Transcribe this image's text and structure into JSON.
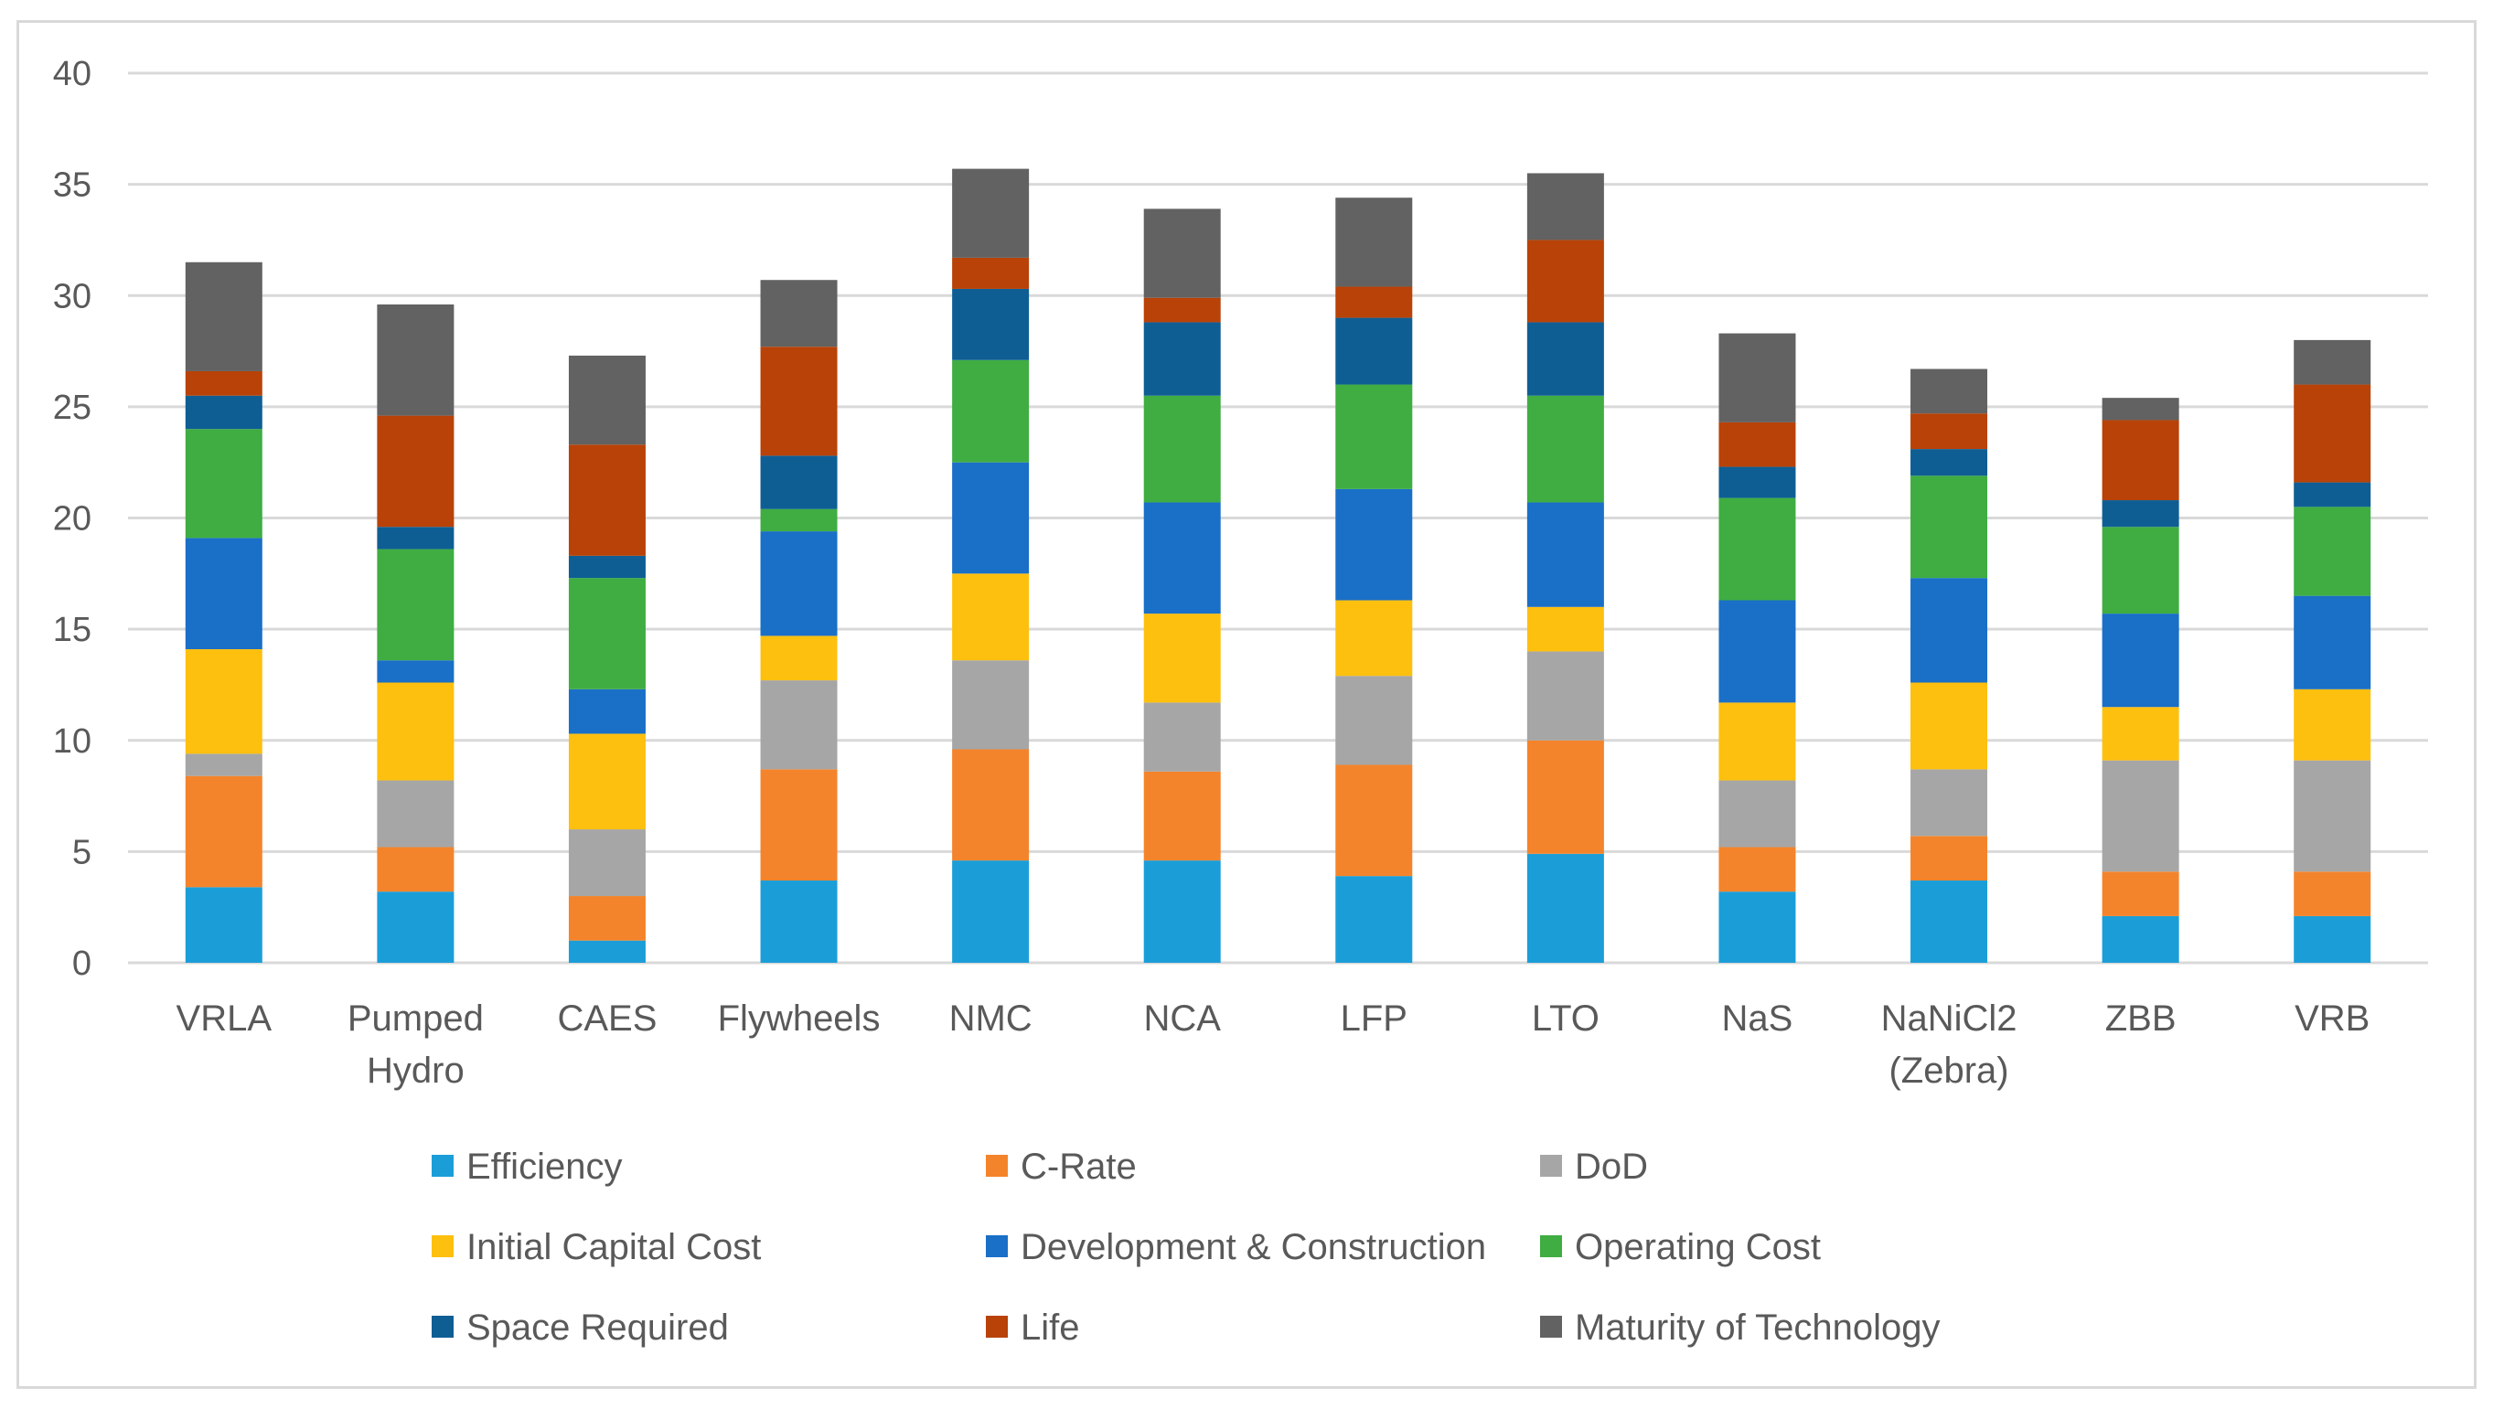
{
  "chart_data": {
    "type": "bar",
    "stacked": true,
    "title": "",
    "xlabel": "",
    "ylabel": "",
    "ylim": [
      0,
      40
    ],
    "yticks": [
      0,
      5,
      10,
      15,
      20,
      25,
      30,
      35,
      40
    ],
    "grid": true,
    "legend_position": "bottom",
    "categories": [
      "VRLA",
      "Pumped Hydro",
      "CAES",
      "Flywheels",
      "NMC",
      "NCA",
      "LFP",
      "LTO",
      "NaS",
      "NaNiCl2 (Zebra)",
      "ZBB",
      "VRB"
    ],
    "category_lines": [
      [
        "VRLA"
      ],
      [
        "Pumped",
        "Hydro"
      ],
      [
        "CAES"
      ],
      [
        "Flywheels"
      ],
      [
        "NMC"
      ],
      [
        "NCA"
      ],
      [
        "LFP"
      ],
      [
        "LTO"
      ],
      [
        "NaS"
      ],
      [
        "NaNiCl2",
        "(Zebra)"
      ],
      [
        "ZBB"
      ],
      [
        "VRB"
      ]
    ],
    "series": [
      {
        "name": "Efficiency",
        "color": "#1B9ED8",
        "values": [
          3.4,
          3.2,
          1.0,
          3.7,
          4.6,
          4.6,
          3.9,
          4.9,
          3.2,
          3.7,
          2.1,
          2.1
        ]
      },
      {
        "name": "C-Rate",
        "color": "#F4842B",
        "values": [
          5.0,
          2.0,
          2.0,
          5.0,
          5.0,
          4.0,
          5.0,
          5.1,
          2.0,
          2.0,
          2.0,
          2.0
        ]
      },
      {
        "name": "DoD",
        "color": "#A6A6A6",
        "values": [
          1.0,
          3.0,
          3.0,
          4.0,
          4.0,
          3.1,
          4.0,
          4.0,
          3.0,
          3.0,
          5.0,
          5.0
        ]
      },
      {
        "name": "Initial Capital Cost",
        "color": "#FEC00F",
        "values": [
          4.7,
          4.4,
          4.3,
          2.0,
          3.9,
          4.0,
          3.4,
          2.0,
          3.5,
          3.9,
          2.4,
          3.2
        ]
      },
      {
        "name": "Development & Construction",
        "color": "#1A6FC7",
        "values": [
          5.0,
          1.0,
          2.0,
          4.7,
          5.0,
          5.0,
          5.0,
          4.7,
          4.6,
          4.7,
          4.2,
          4.2
        ]
      },
      {
        "name": "Operating Cost",
        "color": "#3FAD42",
        "values": [
          4.9,
          5.0,
          5.0,
          1.0,
          4.6,
          4.8,
          4.7,
          4.8,
          4.6,
          4.6,
          3.9,
          4.0
        ]
      },
      {
        "name": "Space Required",
        "color": "#0E5E94",
        "values": [
          1.5,
          1.0,
          1.0,
          2.4,
          3.2,
          3.3,
          3.0,
          3.3,
          1.4,
          1.2,
          1.2,
          1.1
        ]
      },
      {
        "name": "Life",
        "color": "#B84208",
        "values": [
          1.1,
          5.0,
          5.0,
          4.9,
          1.4,
          1.1,
          1.4,
          3.7,
          2.0,
          1.6,
          3.6,
          4.4
        ]
      },
      {
        "name": "Maturity of Technology",
        "color": "#626262",
        "values": [
          4.9,
          5.0,
          4.0,
          3.0,
          4.0,
          4.0,
          4.0,
          3.0,
          4.0,
          2.0,
          1.0,
          2.0
        ]
      }
    ]
  }
}
